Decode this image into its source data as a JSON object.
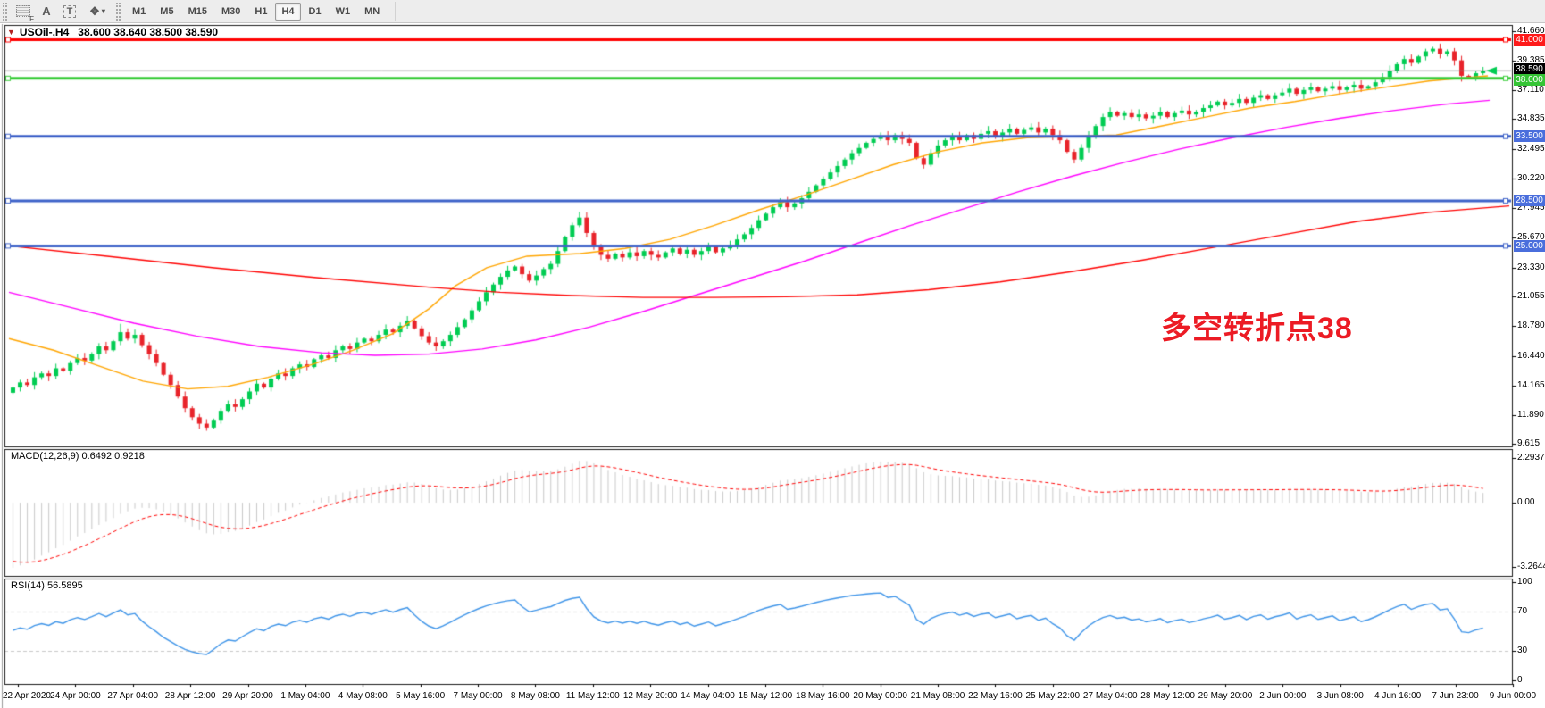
{
  "toolbar": {
    "tool_icons": [
      {
        "name": "pattern-fill-icon",
        "label": "F"
      },
      {
        "name": "text-label-icon",
        "label": "A"
      },
      {
        "name": "text-tool-icon",
        "label": "T"
      },
      {
        "name": "draw-style-icon",
        "label": "❖"
      }
    ],
    "dropdown_caret": "▾",
    "timeframes": [
      "M1",
      "M5",
      "M15",
      "M30",
      "H1",
      "H4",
      "D1",
      "W1",
      "MN"
    ],
    "active_timeframe": "H4"
  },
  "main_chart": {
    "title_marker": "▼",
    "title": "USOil-,H4",
    "ohlc": "38.600 38.640 38.500 38.590"
  },
  "chart_data": [
    {
      "type": "candlestick",
      "symbol": "USOil",
      "timeframe": "H4",
      "title": "USOil-,H4 38.600 38.640 38.500 38.590",
      "ylim": [
        9.615,
        41.66
      ],
      "y_ticks": [
        41.66,
        39.385,
        37.11,
        34.835,
        32.495,
        30.22,
        27.945,
        25.67,
        23.33,
        21.055,
        18.78,
        16.44,
        14.165,
        11.89,
        9.615
      ],
      "x_labels": [
        "22 Apr 2020",
        "24 Apr 00:00",
        "27 Apr 04:00",
        "28 Apr 12:00",
        "29 Apr 20:00",
        "1 May 04:00",
        "4 May 08:00",
        "5 May 16:00",
        "7 May 00:00",
        "8 May 08:00",
        "11 May 12:00",
        "12 May 20:00",
        "14 May 04:00",
        "15 May 12:00",
        "18 May 16:00",
        "20 May 00:00",
        "21 May 08:00",
        "22 May 16:00",
        "25 May 22:00",
        "27 May 04:00",
        "28 May 12:00",
        "29 May 20:00",
        "2 Jun 00:00",
        "3 Jun 08:00",
        "4 Jun 16:00",
        "7 Jun 23:00",
        "9 Jun 00:00"
      ],
      "first_open": 13.6,
      "closes": [
        14.0,
        14.4,
        14.2,
        14.8,
        15.1,
        14.9,
        15.5,
        15.3,
        15.9,
        16.3,
        16.1,
        16.6,
        17.2,
        16.9,
        17.6,
        18.3,
        17.8,
        18.1,
        17.3,
        16.6,
        15.9,
        15.0,
        14.2,
        13.3,
        12.4,
        11.7,
        11.2,
        10.9,
        11.5,
        12.2,
        12.7,
        12.5,
        13.1,
        13.7,
        14.3,
        14.0,
        14.7,
        15.1,
        14.9,
        15.5,
        15.8,
        15.6,
        16.2,
        16.5,
        16.3,
        16.9,
        17.2,
        17.0,
        17.5,
        17.8,
        17.6,
        18.1,
        18.5,
        18.3,
        18.8,
        19.2,
        18.6,
        18.0,
        17.5,
        17.2,
        17.6,
        18.1,
        18.7,
        19.3,
        20.0,
        20.7,
        21.4,
        22.0,
        22.6,
        23.1,
        23.4,
        22.8,
        22.3,
        22.7,
        23.2,
        23.6,
        24.6,
        25.7,
        26.6,
        27.2,
        26.0,
        24.9,
        24.3,
        24.0,
        24.4,
        24.1,
        24.5,
        24.2,
        24.6,
        24.3,
        24.1,
        24.5,
        24.8,
        24.4,
        24.7,
        24.3,
        24.6,
        24.9,
        24.5,
        24.8,
        25.1,
        25.5,
        25.9,
        26.4,
        27.0,
        27.5,
        28.0,
        28.4,
        28.0,
        28.3,
        28.7,
        29.2,
        29.7,
        30.2,
        30.7,
        31.2,
        31.7,
        32.2,
        32.6,
        33.0,
        33.3,
        33.5,
        33.2,
        33.6,
        33.3,
        33.0,
        31.8,
        31.3,
        32.2,
        32.8,
        33.2,
        33.5,
        33.2,
        33.6,
        33.3,
        33.7,
        33.9,
        33.5,
        33.8,
        34.1,
        33.7,
        34.0,
        34.2,
        33.8,
        34.1,
        33.6,
        33.2,
        32.3,
        31.7,
        32.6,
        33.5,
        34.3,
        35.0,
        35.4,
        35.1,
        35.3,
        35.0,
        35.2,
        34.9,
        35.1,
        35.4,
        35.0,
        35.3,
        35.5,
        35.2,
        35.4,
        35.7,
        35.9,
        36.2,
        35.9,
        36.1,
        36.4,
        36.1,
        36.5,
        36.7,
        36.4,
        36.7,
        36.9,
        37.2,
        36.8,
        37.1,
        37.3,
        37.0,
        37.2,
        37.4,
        37.1,
        37.3,
        37.5,
        37.2,
        37.4,
        37.7,
        38.1,
        38.6,
        39.1,
        39.5,
        39.2,
        39.7,
        40.1,
        40.3,
        39.9,
        40.1,
        39.4,
        38.2,
        38.1,
        38.4,
        38.59
      ],
      "wick_overrides": [
        {
          "i": 15,
          "high": 18.95
        },
        {
          "i": 27,
          "low": 10.65
        },
        {
          "i": 79,
          "high": 27.65
        },
        {
          "i": 198,
          "high": 40.45
        },
        {
          "i": 202,
          "low": 37.75
        }
      ],
      "hlines": [
        {
          "value": 41.0,
          "label": "41.000",
          "color": "#ff0000",
          "badge": "#fe1a1a",
          "width": 3
        },
        {
          "value": 38.59,
          "label": "38.590",
          "color": "#808080",
          "badge": "#000000",
          "width": 1,
          "current": true
        },
        {
          "value": 38.0,
          "label": "38.000",
          "color": "#3ccd3c",
          "badge": "#35c435",
          "width": 3
        },
        {
          "value": 33.5,
          "label": "33.500",
          "color": "#3e62c8",
          "badge": "#4a6edc",
          "width": 3
        },
        {
          "value": 28.5,
          "label": "28.500",
          "color": "#3e62c8",
          "badge": "#4a6edc",
          "width": 3
        },
        {
          "value": 25.0,
          "label": "25.000",
          "color": "#3e62c8",
          "badge": "#4a6edc",
          "width": 3
        }
      ],
      "moving_averages": [
        {
          "name": "fast-ma",
          "color": "#ffa500",
          "points": [
            [
              10,
              17.8
            ],
            [
              60,
              16.9
            ],
            [
              110,
              15.7
            ],
            [
              160,
              14.5
            ],
            [
              210,
              13.9
            ],
            [
              255,
              14.1
            ],
            [
              300,
              14.8
            ],
            [
              350,
              15.8
            ],
            [
              395,
              16.9
            ],
            [
              440,
              18.2
            ],
            [
              480,
              20.1
            ],
            [
              510,
              21.9
            ],
            [
              545,
              23.3
            ],
            [
              590,
              24.2
            ],
            [
              650,
              24.4
            ],
            [
              700,
              24.8
            ],
            [
              750,
              25.5
            ],
            [
              800,
              26.6
            ],
            [
              850,
              27.8
            ],
            [
              900,
              28.9
            ],
            [
              950,
              30.1
            ],
            [
              1000,
              31.3
            ],
            [
              1050,
              32.3
            ],
            [
              1100,
              33.0
            ],
            [
              1150,
              33.4
            ],
            [
              1200,
              33.5
            ],
            [
              1250,
              33.6
            ],
            [
              1300,
              34.3
            ],
            [
              1350,
              35.0
            ],
            [
              1400,
              35.7
            ],
            [
              1450,
              36.2
            ],
            [
              1500,
              36.8
            ],
            [
              1550,
              37.3
            ],
            [
              1600,
              37.8
            ],
            [
              1666,
              38.2
            ]
          ]
        },
        {
          "name": "medium-ma",
          "color": "#ff00ff",
          "points": [
            [
              10,
              21.4
            ],
            [
              80,
              20.2
            ],
            [
              150,
              19.0
            ],
            [
              220,
              18.0
            ],
            [
              290,
              17.2
            ],
            [
              360,
              16.7
            ],
            [
              420,
              16.5
            ],
            [
              480,
              16.6
            ],
            [
              540,
              17.0
            ],
            [
              600,
              17.7
            ],
            [
              660,
              18.7
            ],
            [
              720,
              19.9
            ],
            [
              780,
              21.2
            ],
            [
              840,
              22.5
            ],
            [
              900,
              23.8
            ],
            [
              960,
              25.2
            ],
            [
              1020,
              26.6
            ],
            [
              1080,
              27.9
            ],
            [
              1140,
              29.2
            ],
            [
              1200,
              30.4
            ],
            [
              1260,
              31.5
            ],
            [
              1320,
              32.5
            ],
            [
              1380,
              33.4
            ],
            [
              1440,
              34.2
            ],
            [
              1500,
              34.9
            ],
            [
              1560,
              35.5
            ],
            [
              1620,
              36.0
            ],
            [
              1668,
              36.3
            ]
          ]
        },
        {
          "name": "slow-ma",
          "color": "#ff0000",
          "points": [
            [
              10,
              25.0
            ],
            [
              120,
              24.2
            ],
            [
              240,
              23.3
            ],
            [
              360,
              22.5
            ],
            [
              480,
              21.8
            ],
            [
              560,
              21.4
            ],
            [
              640,
              21.15
            ],
            [
              720,
              21.0
            ],
            [
              800,
              21.0
            ],
            [
              880,
              21.05
            ],
            [
              960,
              21.2
            ],
            [
              1040,
              21.6
            ],
            [
              1120,
              22.2
            ],
            [
              1200,
              23.0
            ],
            [
              1280,
              23.9
            ],
            [
              1360,
              24.9
            ],
            [
              1440,
              25.9
            ],
            [
              1520,
              26.9
            ],
            [
              1600,
              27.6
            ],
            [
              1690,
              28.1
            ]
          ]
        }
      ],
      "annotation": {
        "text": "多空转折点38",
        "color": "#ec1b24"
      },
      "current_price": 38.59,
      "bull_color": "#00cc52",
      "bear_color": "#e8232a"
    },
    {
      "type": "macd-histogram",
      "label": "MACD(12,26,9) 0.6492 0.9218",
      "params": [
        12,
        26,
        9
      ],
      "current": {
        "macd": 0.6492,
        "signal": 0.9218
      },
      "y_ticks": [
        2.2937,
        0.0,
        -3.2644
      ],
      "y_tick_labels": [
        "2.2937",
        "0.00",
        "-3.2644"
      ],
      "seed": {
        "ema_fast": 16.2,
        "ema_slow": 19.6,
        "signal": -2.9
      },
      "hist_color": "#c9c9c9",
      "signal_color": "#ff0000"
    },
    {
      "type": "rsi",
      "label": "RSI(14) 56.5895",
      "period": 14,
      "current": 56.5895,
      "levels": [
        70,
        30
      ],
      "y_ticks": [
        100,
        70,
        30,
        0
      ],
      "seed": {
        "avg_gain": 0.28,
        "avg_loss": 0.3
      },
      "line_color": "#3e94e8",
      "level_color": "#c8c8c8"
    }
  ]
}
